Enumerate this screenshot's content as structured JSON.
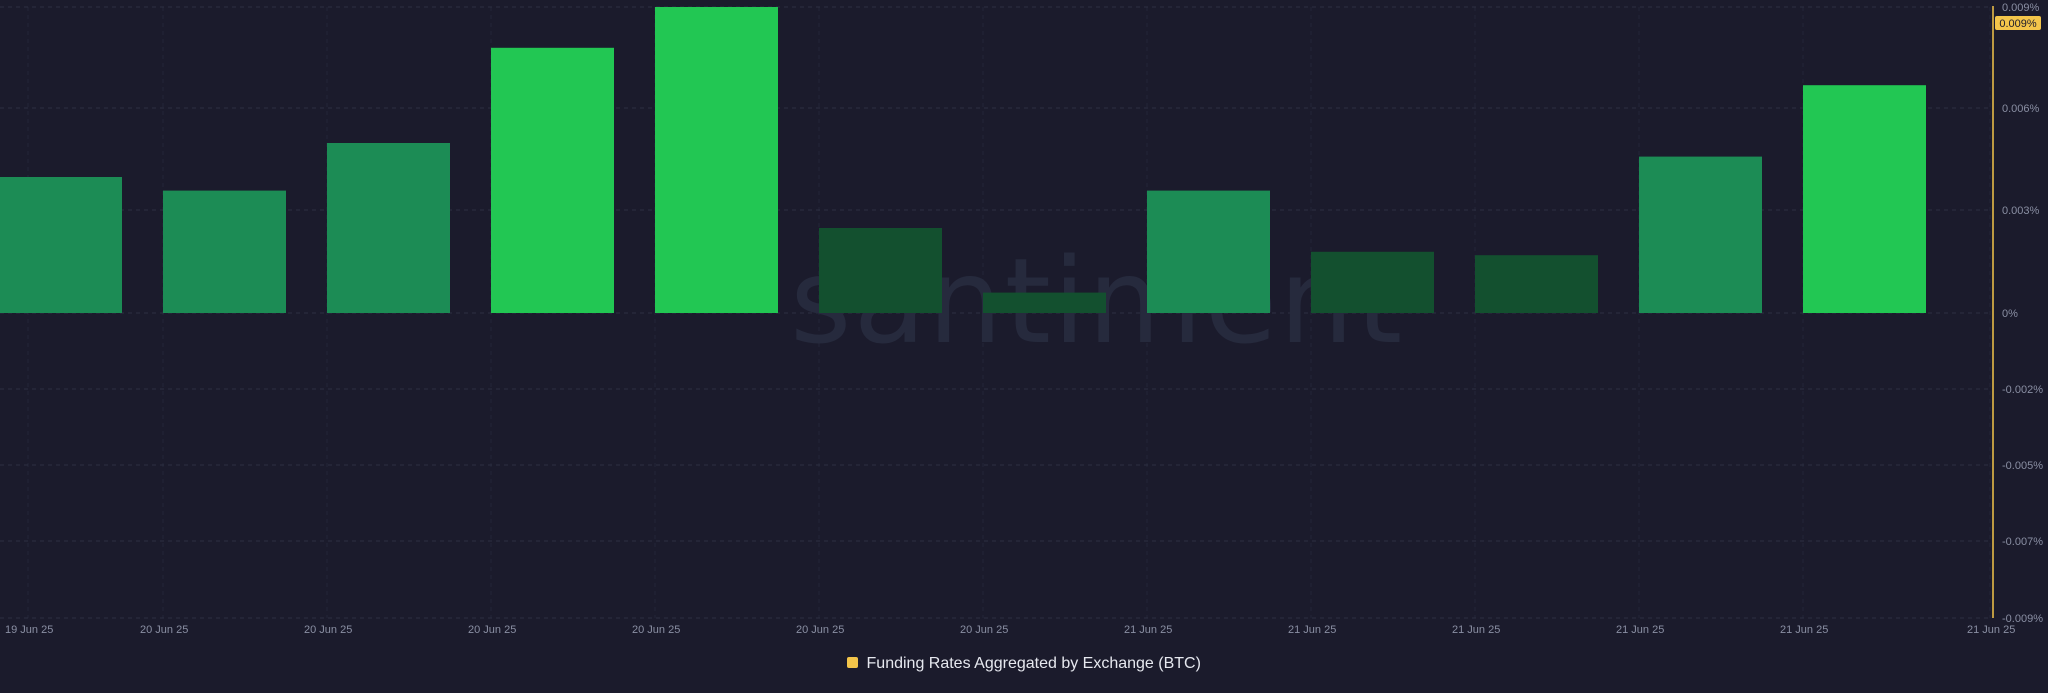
{
  "watermark": "santiment",
  "legend": {
    "label": "Funding Rates Aggregated by Exchange (BTC)",
    "color": "#f3c54a"
  },
  "current_value_badge": "0.009%",
  "colors": {
    "background": "#1b1b2c",
    "grid": "#2c2f42",
    "bar_bright": "#22c753",
    "bar_medium": "#1c8c55",
    "bar_dark": "#13502f",
    "price_line": "#f3c54a"
  },
  "chart_data": {
    "type": "bar",
    "y_unit": "%",
    "ylim": [
      -0.009,
      0.009
    ],
    "y_ticks": [
      "0.009%",
      "0.006%",
      "0.003%",
      "0%",
      "-0.002%",
      "-0.005%",
      "-0.007%",
      "-0.009%"
    ],
    "x_ticks": [
      "19 Jun 25",
      "20 Jun 25",
      "20 Jun 25",
      "20 Jun 25",
      "20 Jun 25",
      "20 Jun 25",
      "20 Jun 25",
      "21 Jun 25",
      "21 Jun 25",
      "21 Jun 25",
      "21 Jun 25",
      "21 Jun 25",
      "21 Jun 25"
    ],
    "grid": true,
    "legend_position": "bottom-center",
    "series": [
      {
        "name": "Funding Rates Aggregated by Exchange (BTC)",
        "values": [
          0.004,
          0.0036,
          0.005,
          0.0078,
          0.009,
          0.0025,
          0.0006,
          0.0036,
          0.0018,
          0.0017,
          0.0046,
          0.0067
        ],
        "shades": [
          "medium",
          "medium",
          "medium",
          "bright",
          "bright",
          "dark",
          "dark",
          "medium",
          "dark",
          "dark",
          "medium",
          "bright"
        ]
      }
    ]
  }
}
